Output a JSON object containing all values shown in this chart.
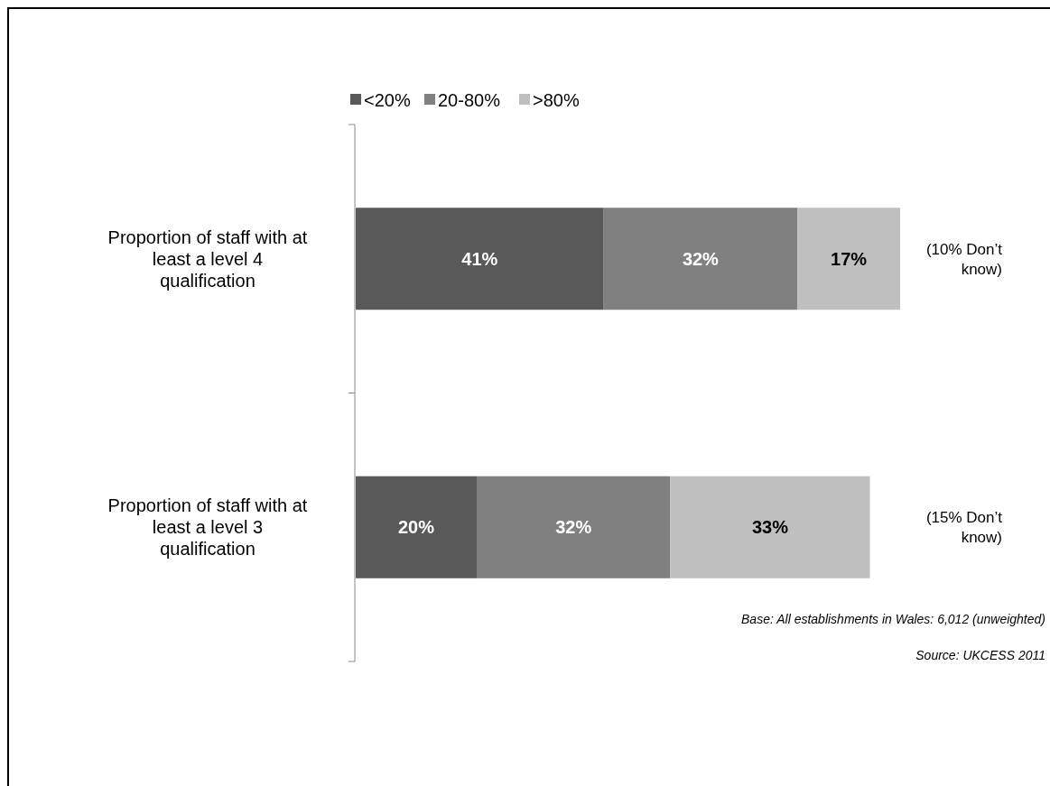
{
  "chart_data": {
    "type": "bar",
    "orientation": "horizontal",
    "stacked": true,
    "legend": "top",
    "categories": [
      "Proportion of staff with at least a level 4 qualification",
      "Proportion of staff with at least a level 3 qualification"
    ],
    "series": [
      {
        "name": "<20%",
        "color": "#595959",
        "values": [
          41,
          20
        ],
        "value_labels": [
          "41%",
          "20%"
        ]
      },
      {
        "name": "20-80%",
        "color": "#808080",
        "values": [
          32,
          32
        ],
        "value_labels": [
          "32%",
          "32%"
        ]
      },
      {
        "name": ">80%",
        "color": "#bfbfbf",
        "values": [
          17,
          33
        ],
        "value_labels": [
          "17%",
          "33%"
        ]
      }
    ],
    "annotations": [
      "(10% Don’t know)",
      "(15% Don’t know)",
      "Base: All establishments in Wales: 6,012 (unweighted)",
      "Source: UKCESS 2011"
    ]
  }
}
